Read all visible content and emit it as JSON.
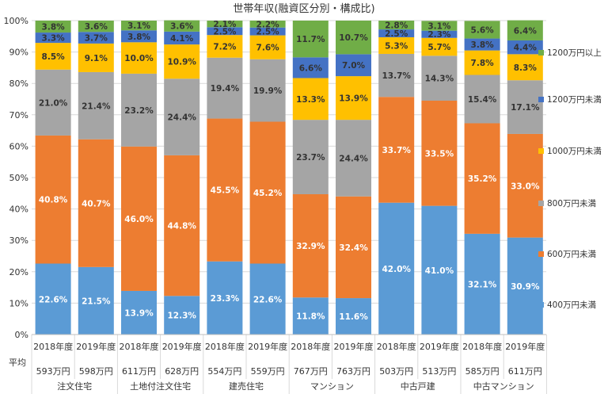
{
  "chart_data": {
    "type": "bar",
    "stacked": true,
    "title": "世帯年収(融資区分別・構成比)",
    "ylim": [
      0,
      100
    ],
    "yticks": [
      "0%",
      "10%",
      "20%",
      "30%",
      "40%",
      "50%",
      "60%",
      "70%",
      "80%",
      "90%",
      "100%"
    ],
    "grid": true,
    "legend_position": "right",
    "avg_label": "平均",
    "groups": [
      "注文住宅",
      "土地付注文住宅",
      "建売住宅",
      "マンション",
      "中古戸建",
      "中古マンション"
    ],
    "categories": [
      "2018年度",
      "2019年度",
      "2018年度",
      "2019年度",
      "2018年度",
      "2019年度",
      "2018年度",
      "2019年度",
      "2018年度",
      "2019年度",
      "2018年度",
      "2019年度"
    ],
    "averages": [
      "593万円",
      "598万円",
      "611万円",
      "628万円",
      "554万円",
      "559万円",
      "767万円",
      "763万円",
      "503万円",
      "513万円",
      "585万円",
      "611万円"
    ],
    "series": [
      {
        "name": "400万円未満",
        "color": "#5B9BD5",
        "values": [
          22.6,
          21.5,
          13.9,
          12.3,
          23.3,
          22.6,
          11.8,
          11.6,
          42.0,
          41.0,
          32.1,
          30.9
        ]
      },
      {
        "name": "600万円未満",
        "color": "#ED7D31",
        "values": [
          40.8,
          40.7,
          46.0,
          44.8,
          45.5,
          45.2,
          32.9,
          32.4,
          33.7,
          33.5,
          35.2,
          33.0
        ]
      },
      {
        "name": "800万円未満",
        "color": "#A5A5A5",
        "values": [
          21.0,
          21.4,
          23.2,
          24.4,
          19.4,
          19.9,
          23.7,
          24.4,
          13.7,
          14.3,
          15.4,
          17.1
        ]
      },
      {
        "name": "1000万円未満",
        "color": "#FFC000",
        "values": [
          8.5,
          9.1,
          10.0,
          10.9,
          7.2,
          7.6,
          13.3,
          13.9,
          5.3,
          5.7,
          7.8,
          8.3
        ]
      },
      {
        "name": "1200万円未満",
        "color": "#4472C4",
        "values": [
          3.3,
          3.7,
          3.8,
          4.1,
          2.5,
          2.5,
          6.6,
          7.0,
          2.5,
          2.3,
          3.8,
          4.4
        ]
      },
      {
        "name": "1200万円以上",
        "color": "#70AD47",
        "values": [
          3.8,
          3.6,
          3.1,
          3.6,
          2.1,
          2.2,
          11.7,
          10.7,
          2.8,
          3.1,
          5.6,
          6.4
        ]
      }
    ]
  }
}
